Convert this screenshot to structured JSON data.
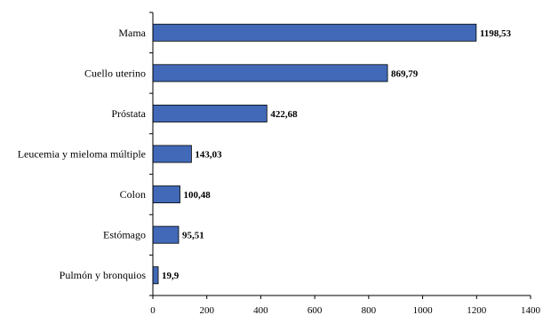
{
  "chart_data": {
    "type": "bar",
    "orientation": "horizontal",
    "categories": [
      "Mama",
      "Cuello uterino",
      "Próstata",
      "Leucemia y mieloma múltiple",
      "Colon",
      "Estómago",
      "Pulmón y bronquios"
    ],
    "values": [
      1198.53,
      869.79,
      422.68,
      143.03,
      100.48,
      95.51,
      19.9
    ],
    "data_labels": [
      "1198,53",
      "869,79",
      "422,68",
      "143,03",
      "100,48",
      "95,51",
      "19,9"
    ],
    "xlim": [
      0,
      1400
    ],
    "x_ticks": [
      0,
      200,
      400,
      600,
      800,
      1000,
      1200,
      1400
    ],
    "x_tick_labels": [
      "0",
      "200",
      "400",
      "600",
      "800",
      "1000",
      "1200",
      "1400"
    ],
    "title": "",
    "xlabel": "",
    "ylabel": "",
    "grid": false,
    "legend": "none",
    "bar_color": "#4169b7"
  }
}
